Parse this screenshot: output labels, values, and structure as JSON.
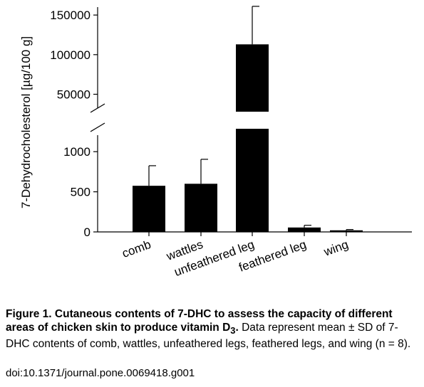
{
  "chart_data": {
    "type": "bar",
    "ylabel": "7-Dehydrocholesterol [µg/100 g]",
    "categories": [
      "comb",
      "wattles",
      "unfeathered leg",
      "feathered leg",
      "wing"
    ],
    "values": [
      575,
      600,
      113000,
      55,
      20
    ],
    "errors": [
      250,
      305,
      48000,
      28,
      10
    ],
    "axis_break": true,
    "lower_range": [
      0,
      1250
    ],
    "upper_range": [
      28000,
      160000
    ],
    "lower_ticks": [
      0,
      500,
      1000
    ],
    "lower_tick_labels": [
      "0",
      "500",
      "1000"
    ],
    "upper_ticks": [
      50000,
      100000,
      150000
    ],
    "upper_tick_labels": [
      "50000",
      "100000",
      "150000"
    ],
    "bar_color": "#000000",
    "grid": false
  },
  "caption": {
    "figure_label": "Figure 1. Cutaneous contents of 7-DHC to assess the capacity of different areas of chicken skin to produce vitamin D",
    "figure_subscript": "3",
    "figure_period": ".",
    "text": " Data represent mean ± SD of 7-DHC contents of comb, wattles, unfeathered legs, feathered legs, and wing (n = 8)."
  },
  "doi": "doi:10.1371/journal.pone.0069418.g001"
}
